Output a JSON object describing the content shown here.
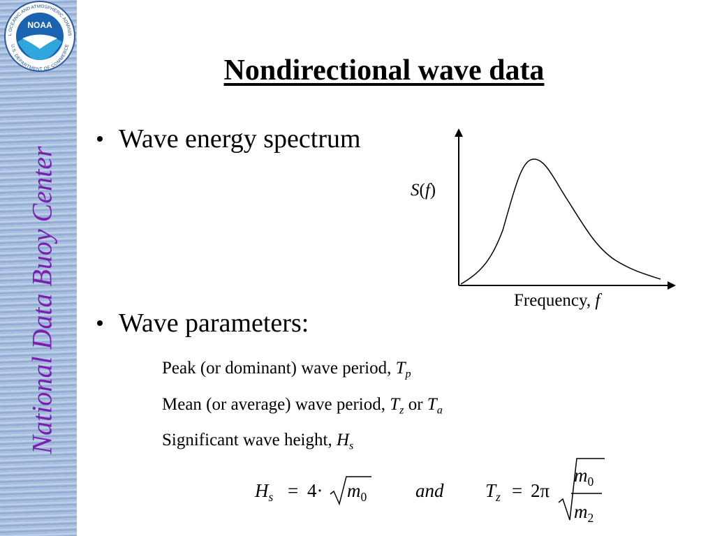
{
  "sidebar": {
    "logo": {
      "abbr": "NOAA",
      "ring_top": "NATIONAL OCEANIC AND ATMOSPHERIC ADMINISTRATION",
      "ring_bottom": "U.S. DEPARTMENT OF COMMERCE"
    },
    "org_name": "National Data Buoy Center"
  },
  "title": "Nondirectional wave data",
  "bullets": [
    "Wave energy spectrum",
    "Wave parameters:"
  ],
  "spectrum_figure": {
    "y_label": {
      "symbol": "S",
      "open": "(",
      "var": "f",
      "close": ")"
    },
    "x_label": {
      "text": "Frequency, ",
      "var": "f"
    }
  },
  "parameters": [
    {
      "text": "Peak (or dominant) wave period, ",
      "symbol": "T",
      "sub": "p"
    },
    {
      "text": "Mean (or average) wave period, ",
      "symbol": "T",
      "sub": "z",
      "joiner": " or ",
      "symbol2": "T",
      "sub2": "a"
    },
    {
      "text": "Significant wave height, ",
      "symbol": "H",
      "sub": "s"
    }
  ],
  "formula": {
    "h": "H",
    "h_sub": "s",
    "eq1": "=",
    "four": "4·",
    "m_a": "m",
    "m_a_sub": "0",
    "and": "and",
    "t": "T",
    "t_sub": "z",
    "eq2": "=",
    "two_pi": "2π",
    "num": "m",
    "num_sub": "0",
    "den": "m",
    "den_sub": "2"
  }
}
